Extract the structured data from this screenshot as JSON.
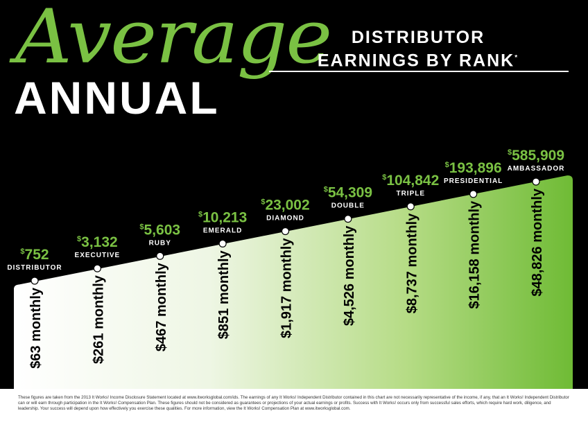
{
  "heading": {
    "script_word": "Average",
    "main_word": "ANNUAL",
    "subtitle_line1": "DISTRIBUTOR",
    "subtitle_line2": "EARNINGS BY RANK",
    "subtitle_mark": "*"
  },
  "colors": {
    "accent_green": "#7ac143",
    "background": "#000000",
    "label_text": "#ffffff",
    "monthly_text": "#000000"
  },
  "chart_data": {
    "type": "area",
    "categories": [
      "DISTRIBUTOR",
      "EXECUTIVE",
      "RUBY",
      "EMERALD",
      "DIAMOND",
      "DOUBLE",
      "TRIPLE",
      "PRESIDENTIAL",
      "AMBASSADOR"
    ],
    "annual_labels": [
      "752",
      "3,132",
      "5,603",
      "10,213",
      "23,002",
      "54,309",
      "104,842",
      "193,896",
      "585,909"
    ],
    "currency_symbol": "$",
    "values": [
      752,
      3132,
      5603,
      10213,
      23002,
      54309,
      104842,
      193896,
      585909
    ],
    "monthly_labels": [
      "$63 monthly",
      "$261 monthly",
      "$467 monthly",
      "$851 monthly",
      "$1,917 monthly",
      "$4,526 monthly",
      "$8,737 monthly",
      "$16,158 monthly",
      "$48,826 monthly"
    ],
    "monthly_values": [
      63,
      261,
      467,
      851,
      1917,
      4526,
      8737,
      16158,
      48826
    ],
    "scale": "ordinal-rising",
    "gradient": "white-to-green"
  },
  "footer": {
    "disclaimer": "These figures are taken from the 2013 It Works! Income Disclosure Statement located at www.itworksglobal.com/ids.  The earnings of any It Works! Independent Distributor contained in this chart are not necessarily representative of the income, if any, that an It Works! Independent Distributor can or will earn through participation in the It Works! Compensation Plan. These figures should not be considered as guarantees or projections of your actual earnings or profits. Success with It Works! occurs only from successful sales efforts, which require hard work, diligence, and leadership. Your success will depend upon how effectively you exercise these qualities. For more information, view the It Works! Compensation Plan at www.itworksglobal.com."
  }
}
